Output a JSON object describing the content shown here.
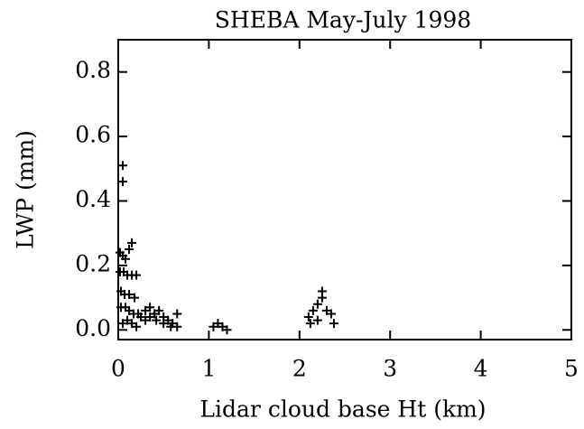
{
  "chart_data": {
    "type": "scatter",
    "title": "SHEBA May-July 1998",
    "x_label": "Lidar cloud base Ht (km)",
    "y_label": "LWP (mm)",
    "x": [
      0.05,
      0.05,
      0.02,
      0.05,
      0.08,
      0.12,
      0.15,
      0.02,
      0.06,
      0.1,
      0.15,
      0.2,
      0.03,
      0.07,
      0.12,
      0.18,
      0.03,
      0.08,
      0.12,
      0.17,
      0.22,
      0.25,
      0.3,
      0.35,
      0.4,
      0.45,
      0.5,
      0.55,
      0.6,
      0.65,
      0.65,
      0.1,
      0.15,
      0.2,
      0.3,
      0.35,
      0.42,
      0.5,
      0.58,
      0.05,
      1.05,
      1.1,
      1.15,
      1.2,
      2.1,
      2.15,
      2.2,
      2.25,
      2.25,
      2.3,
      2.35,
      2.38,
      2.2,
      2.12
    ],
    "values": [
      0.51,
      0.46,
      0.24,
      0.23,
      0.22,
      0.25,
      0.27,
      0.18,
      0.18,
      0.17,
      0.17,
      0.17,
      0.12,
      0.11,
      0.11,
      0.1,
      0.07,
      0.07,
      0.06,
      0.05,
      0.05,
      0.04,
      0.03,
      0.04,
      0.05,
      0.06,
      0.04,
      0.03,
      0.02,
      0.01,
      0.05,
      0.03,
      0.02,
      0.01,
      0.06,
      0.07,
      0.03,
      0.02,
      0.01,
      0.02,
      0.01,
      0.02,
      0.01,
      0.0,
      0.04,
      0.06,
      0.08,
      0.12,
      0.1,
      0.06,
      0.05,
      0.02,
      0.03,
      0.02
    ],
    "color": "#000000",
    "xlim": [
      0,
      5
    ],
    "xticks": [
      0,
      1,
      2,
      3,
      4,
      5
    ],
    "ylim": [
      -0.03,
      0.9
    ],
    "yticks": [
      {
        "value": 0,
        "label": "0.0"
      },
      {
        "value": 0.2,
        "label": "0.2"
      },
      {
        "value": 0.4,
        "label": "0.4"
      },
      {
        "value": 0.6,
        "label": "0.6"
      },
      {
        "value": 0.8,
        "label": "0.8"
      }
    ]
  }
}
